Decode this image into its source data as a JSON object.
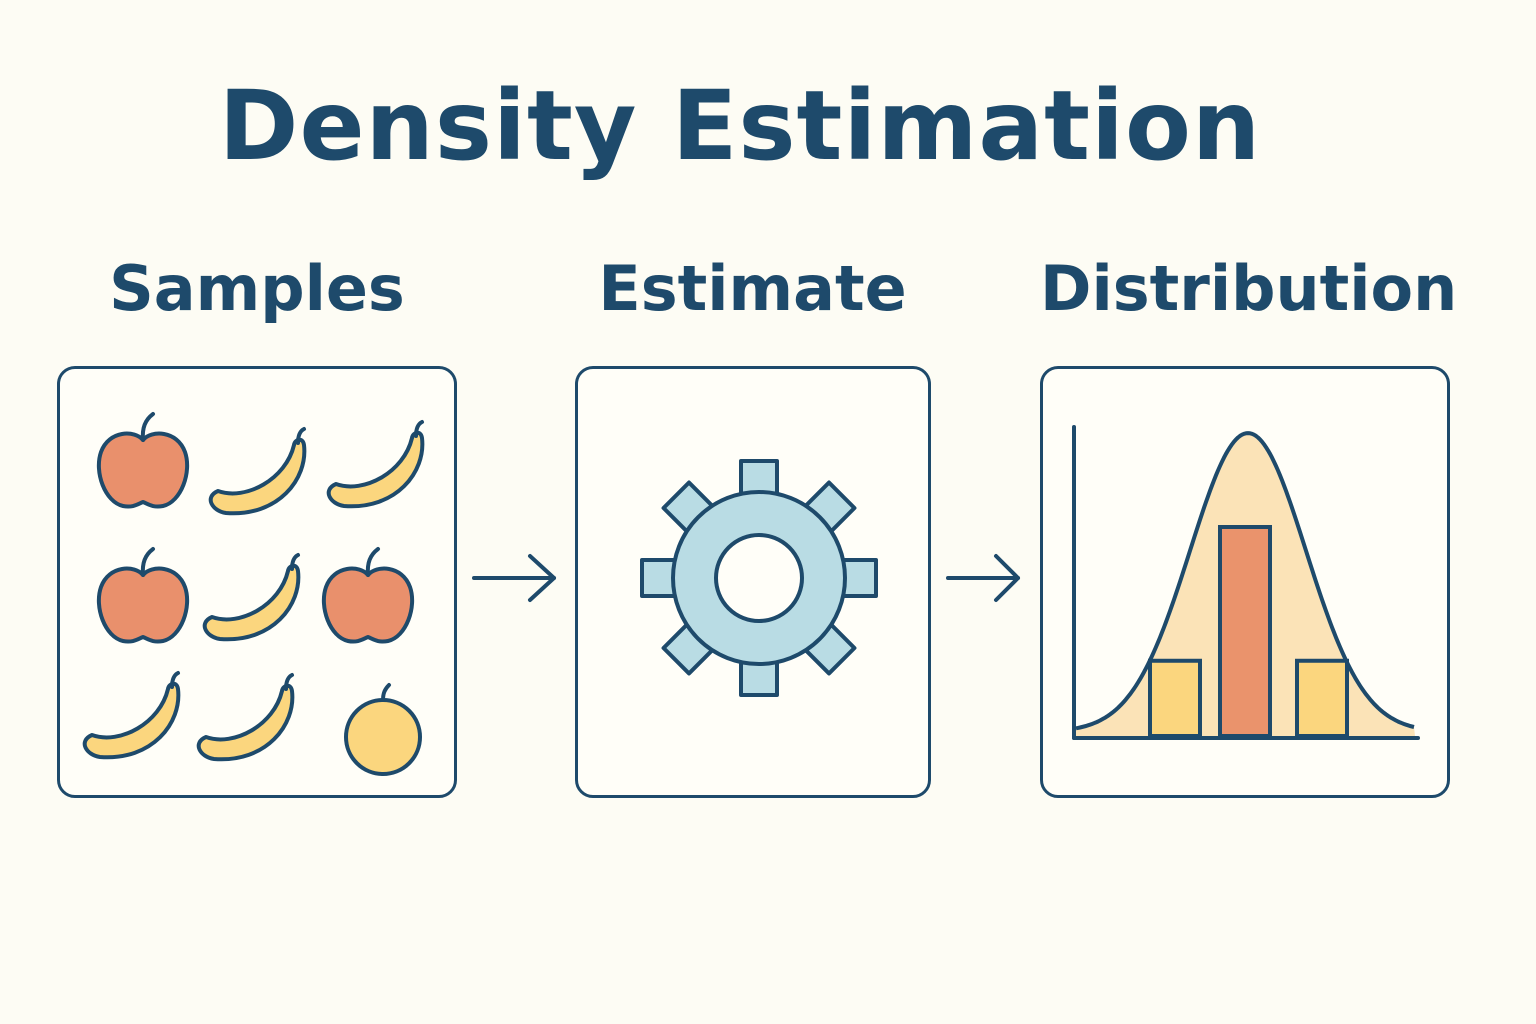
{
  "title": "Density Estimation",
  "steps": [
    {
      "label": "Samples"
    },
    {
      "label": "Estimate"
    },
    {
      "label": "Distribution"
    }
  ],
  "colors": {
    "primary": "#1e4a6b",
    "background": "#fdfcf4",
    "apple": "#e9906c",
    "banana": "#fbd67e",
    "gear": "#b9dce4",
    "curve_fill": "#fbe3b7",
    "bar_highlight": "#ea936c",
    "bar": "#fbd67e"
  },
  "icons": {
    "samples": [
      "apple-icon",
      "banana-icon",
      "banana-icon",
      "apple-icon",
      "banana-icon",
      "apple-icon",
      "banana-icon",
      "banana-icon",
      "orange-icon"
    ],
    "estimate": "gear-icon",
    "distribution": "bell-curve-histogram-icon"
  },
  "chart_data": {
    "type": "bar",
    "categories": [
      "",
      "",
      ""
    ],
    "values": [
      0.36,
      1.0,
      0.36
    ],
    "curve": "normal"
  }
}
